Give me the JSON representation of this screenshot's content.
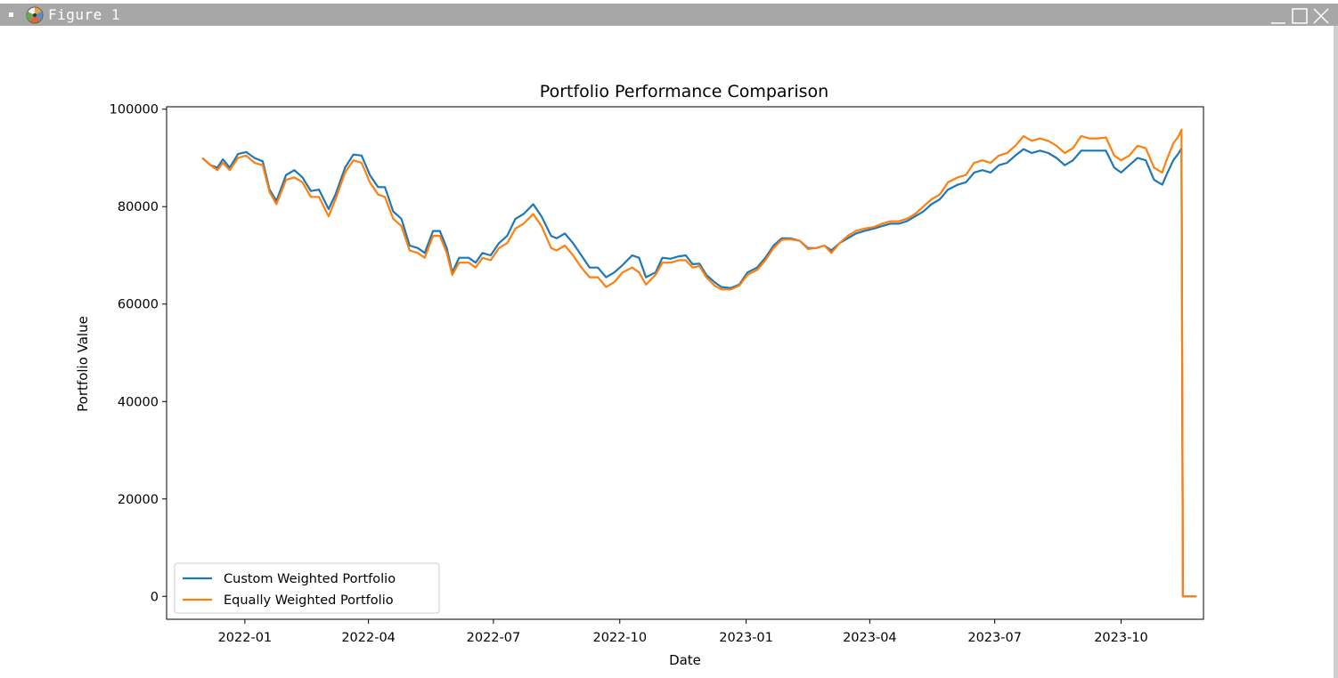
{
  "window": {
    "title": "Figure 1",
    "icons": [
      "matplotlib-logo-icon",
      "minimize-icon",
      "maximize-icon",
      "close-icon"
    ]
  },
  "chart_data": {
    "type": "line",
    "title": "Portfolio Performance Comparison",
    "xlabel": "Date",
    "ylabel": "Portfolio Value",
    "xlim": [
      "2021-11-05",
      "2023-11-30"
    ],
    "ylim": [
      -4700,
      100500
    ],
    "x_ticks": [
      "2022-01",
      "2022-04",
      "2022-07",
      "2022-10",
      "2023-01",
      "2023-04",
      "2023-07",
      "2023-10"
    ],
    "y_ticks": [
      0,
      20000,
      40000,
      60000,
      80000,
      100000
    ],
    "grid": false,
    "legend": {
      "position": "lower-left"
    },
    "series": [
      {
        "name": "Custom Weighted Portfolio",
        "color": "#1f77b4",
        "points": [
          [
            "2021-12-01",
            90000
          ],
          [
            "2021-12-07",
            88500
          ],
          [
            "2021-12-12",
            88000
          ],
          [
            "2021-12-16",
            89700
          ],
          [
            "2021-12-21",
            88000
          ],
          [
            "2021-12-27",
            90800
          ],
          [
            "2022-01-02",
            91200
          ],
          [
            "2022-01-08",
            90000
          ],
          [
            "2022-01-14",
            89300
          ],
          [
            "2022-01-19",
            83500
          ],
          [
            "2022-01-24",
            81200
          ],
          [
            "2022-01-31",
            86500
          ],
          [
            "2022-02-06",
            87500
          ],
          [
            "2022-02-12",
            86000
          ],
          [
            "2022-02-18",
            83200
          ],
          [
            "2022-02-24",
            83500
          ],
          [
            "2022-03-03",
            79500
          ],
          [
            "2022-03-08",
            82500
          ],
          [
            "2022-03-15",
            88000
          ],
          [
            "2022-03-21",
            90700
          ],
          [
            "2022-03-27",
            90500
          ],
          [
            "2022-04-02",
            86500
          ],
          [
            "2022-04-08",
            84000
          ],
          [
            "2022-04-13",
            84000
          ],
          [
            "2022-04-19",
            79000
          ],
          [
            "2022-04-25",
            77500
          ],
          [
            "2022-05-01",
            72000
          ],
          [
            "2022-05-07",
            71500
          ],
          [
            "2022-05-12",
            70500
          ],
          [
            "2022-05-18",
            75000
          ],
          [
            "2022-05-23",
            75000
          ],
          [
            "2022-05-28",
            71500
          ],
          [
            "2022-06-01",
            66500
          ],
          [
            "2022-06-06",
            69500
          ],
          [
            "2022-06-13",
            69500
          ],
          [
            "2022-06-18",
            68500
          ],
          [
            "2022-06-23",
            70500
          ],
          [
            "2022-06-29",
            70000
          ],
          [
            "2022-07-05",
            72500
          ],
          [
            "2022-07-11",
            74000
          ],
          [
            "2022-07-17",
            77500
          ],
          [
            "2022-07-23",
            78500
          ],
          [
            "2022-07-30",
            80500
          ],
          [
            "2022-08-05",
            78000
          ],
          [
            "2022-08-12",
            74000
          ],
          [
            "2022-08-16",
            73500
          ],
          [
            "2022-08-22",
            74500
          ],
          [
            "2022-08-28",
            72500
          ],
          [
            "2022-09-03",
            70000
          ],
          [
            "2022-09-09",
            67500
          ],
          [
            "2022-09-15",
            67500
          ],
          [
            "2022-09-21",
            65500
          ],
          [
            "2022-09-27",
            66500
          ],
          [
            "2022-10-03",
            68000
          ],
          [
            "2022-10-10",
            70000
          ],
          [
            "2022-10-15",
            69500
          ],
          [
            "2022-10-20",
            65500
          ],
          [
            "2022-10-27",
            66500
          ],
          [
            "2022-11-01",
            69500
          ],
          [
            "2022-11-07",
            69300
          ],
          [
            "2022-11-13",
            69800
          ],
          [
            "2022-11-18",
            70000
          ],
          [
            "2022-11-23",
            68200
          ],
          [
            "2022-11-28",
            68300
          ],
          [
            "2022-12-03",
            66000
          ],
          [
            "2022-12-09",
            64500
          ],
          [
            "2022-12-14",
            63500
          ],
          [
            "2022-12-21",
            63300
          ],
          [
            "2022-12-27",
            64000
          ],
          [
            "2023-01-02",
            66500
          ],
          [
            "2023-01-09",
            67500
          ],
          [
            "2023-01-15",
            69500
          ],
          [
            "2023-01-21",
            72000
          ],
          [
            "2023-01-27",
            73500
          ],
          [
            "2023-02-02",
            73500
          ],
          [
            "2023-02-09",
            73000
          ],
          [
            "2023-02-15",
            71500
          ],
          [
            "2023-02-21",
            71500
          ],
          [
            "2023-02-27",
            72000
          ],
          [
            "2023-03-04",
            71000
          ],
          [
            "2023-03-10",
            72500
          ],
          [
            "2023-03-16",
            73500
          ],
          [
            "2023-03-22",
            74500
          ],
          [
            "2023-03-28",
            75000
          ],
          [
            "2023-04-04",
            75500
          ],
          [
            "2023-04-10",
            76000
          ],
          [
            "2023-04-16",
            76500
          ],
          [
            "2023-04-22",
            76500
          ],
          [
            "2023-04-28",
            77000
          ],
          [
            "2023-05-04",
            78000
          ],
          [
            "2023-05-10",
            79000
          ],
          [
            "2023-05-16",
            80500
          ],
          [
            "2023-05-22",
            81500
          ],
          [
            "2023-05-28",
            83500
          ],
          [
            "2023-06-04",
            84500
          ],
          [
            "2023-06-10",
            85000
          ],
          [
            "2023-06-16",
            87000
          ],
          [
            "2023-06-22",
            87500
          ],
          [
            "2023-06-28",
            87000
          ],
          [
            "2023-07-04",
            88500
          ],
          [
            "2023-07-10",
            89000
          ],
          [
            "2023-07-16",
            90500
          ],
          [
            "2023-07-22",
            91800
          ],
          [
            "2023-07-28",
            91000
          ],
          [
            "2023-08-03",
            91500
          ],
          [
            "2023-08-09",
            91000
          ],
          [
            "2023-08-15",
            90000
          ],
          [
            "2023-08-21",
            88500
          ],
          [
            "2023-08-27",
            89500
          ],
          [
            "2023-09-02",
            91500
          ],
          [
            "2023-09-08",
            91500
          ],
          [
            "2023-09-14",
            91500
          ],
          [
            "2023-09-20",
            91500
          ],
          [
            "2023-09-26",
            88000
          ],
          [
            "2023-10-01",
            87000
          ],
          [
            "2023-10-07",
            88500
          ],
          [
            "2023-10-13",
            90000
          ],
          [
            "2023-10-19",
            89500
          ],
          [
            "2023-10-25",
            85500
          ],
          [
            "2023-10-31",
            84500
          ],
          [
            "2023-11-03",
            86500
          ],
          [
            "2023-11-08",
            89500
          ],
          [
            "2023-11-12",
            91000
          ],
          [
            "2023-11-14",
            92000
          ],
          [
            "2023-11-15",
            0
          ],
          [
            "2023-11-25",
            0
          ]
        ]
      },
      {
        "name": "Equally Weighted Portfolio",
        "color": "#ff7f0e",
        "points": [
          [
            "2021-12-01",
            90000
          ],
          [
            "2021-12-07",
            88500
          ],
          [
            "2021-12-12",
            87500
          ],
          [
            "2021-12-16",
            89000
          ],
          [
            "2021-12-21",
            87500
          ],
          [
            "2021-12-27",
            90000
          ],
          [
            "2022-01-02",
            90500
          ],
          [
            "2022-01-08",
            89000
          ],
          [
            "2022-01-14",
            88500
          ],
          [
            "2022-01-19",
            83000
          ],
          [
            "2022-01-24",
            80500
          ],
          [
            "2022-01-31",
            85500
          ],
          [
            "2022-02-06",
            86000
          ],
          [
            "2022-02-12",
            85000
          ],
          [
            "2022-02-18",
            82000
          ],
          [
            "2022-02-24",
            82000
          ],
          [
            "2022-03-03",
            78000
          ],
          [
            "2022-03-08",
            81500
          ],
          [
            "2022-03-15",
            87000
          ],
          [
            "2022-03-21",
            89500
          ],
          [
            "2022-03-27",
            89000
          ],
          [
            "2022-04-02",
            85000
          ],
          [
            "2022-04-08",
            82500
          ],
          [
            "2022-04-13",
            82000
          ],
          [
            "2022-04-19",
            77500
          ],
          [
            "2022-04-25",
            76000
          ],
          [
            "2022-05-01",
            71000
          ],
          [
            "2022-05-07",
            70500
          ],
          [
            "2022-05-12",
            69500
          ],
          [
            "2022-05-18",
            74000
          ],
          [
            "2022-05-23",
            74000
          ],
          [
            "2022-05-28",
            70500
          ],
          [
            "2022-06-01",
            66000
          ],
          [
            "2022-06-06",
            68500
          ],
          [
            "2022-06-13",
            68500
          ],
          [
            "2022-06-18",
            67500
          ],
          [
            "2022-06-23",
            69500
          ],
          [
            "2022-06-29",
            69000
          ],
          [
            "2022-07-05",
            71500
          ],
          [
            "2022-07-11",
            72500
          ],
          [
            "2022-07-17",
            75500
          ],
          [
            "2022-07-23",
            76500
          ],
          [
            "2022-07-30",
            78500
          ],
          [
            "2022-08-05",
            76000
          ],
          [
            "2022-08-12",
            71500
          ],
          [
            "2022-08-16",
            71000
          ],
          [
            "2022-08-22",
            72000
          ],
          [
            "2022-08-28",
            70000
          ],
          [
            "2022-09-03",
            67500
          ],
          [
            "2022-09-09",
            65500
          ],
          [
            "2022-09-15",
            65500
          ],
          [
            "2022-09-21",
            63500
          ],
          [
            "2022-09-27",
            64500
          ],
          [
            "2022-10-03",
            66500
          ],
          [
            "2022-10-10",
            67500
          ],
          [
            "2022-10-15",
            66500
          ],
          [
            "2022-10-20",
            64000
          ],
          [
            "2022-10-27",
            66000
          ],
          [
            "2022-11-01",
            68500
          ],
          [
            "2022-11-07",
            68500
          ],
          [
            "2022-11-13",
            69000
          ],
          [
            "2022-11-18",
            69000
          ],
          [
            "2022-11-23",
            67500
          ],
          [
            "2022-11-28",
            67800
          ],
          [
            "2022-12-03",
            65500
          ],
          [
            "2022-12-09",
            63800
          ],
          [
            "2022-12-14",
            63000
          ],
          [
            "2022-12-21",
            63000
          ],
          [
            "2022-12-27",
            63800
          ],
          [
            "2023-01-02",
            66000
          ],
          [
            "2023-01-09",
            67000
          ],
          [
            "2023-01-15",
            69000
          ],
          [
            "2023-01-21",
            71500
          ],
          [
            "2023-01-27",
            73200
          ],
          [
            "2023-02-02",
            73300
          ],
          [
            "2023-02-09",
            73000
          ],
          [
            "2023-02-15",
            71300
          ],
          [
            "2023-02-21",
            71500
          ],
          [
            "2023-02-27",
            72000
          ],
          [
            "2023-03-04",
            70500
          ],
          [
            "2023-03-10",
            72500
          ],
          [
            "2023-03-16",
            74000
          ],
          [
            "2023-03-22",
            75000
          ],
          [
            "2023-03-28",
            75500
          ],
          [
            "2023-04-04",
            75800
          ],
          [
            "2023-04-10",
            76500
          ],
          [
            "2023-04-16",
            77000
          ],
          [
            "2023-04-22",
            77000
          ],
          [
            "2023-04-28",
            77500
          ],
          [
            "2023-05-04",
            78500
          ],
          [
            "2023-05-10",
            80000
          ],
          [
            "2023-05-16",
            81500
          ],
          [
            "2023-05-22",
            82500
          ],
          [
            "2023-05-28",
            85000
          ],
          [
            "2023-06-04",
            86000
          ],
          [
            "2023-06-10",
            86500
          ],
          [
            "2023-06-16",
            89000
          ],
          [
            "2023-06-22",
            89500
          ],
          [
            "2023-06-28",
            89000
          ],
          [
            "2023-07-04",
            90500
          ],
          [
            "2023-07-10",
            91000
          ],
          [
            "2023-07-16",
            92500
          ],
          [
            "2023-07-22",
            94500
          ],
          [
            "2023-07-28",
            93500
          ],
          [
            "2023-08-03",
            94000
          ],
          [
            "2023-08-09",
            93500
          ],
          [
            "2023-08-15",
            92500
          ],
          [
            "2023-08-21",
            91000
          ],
          [
            "2023-08-27",
            92000
          ],
          [
            "2023-09-02",
            94500
          ],
          [
            "2023-09-08",
            94000
          ],
          [
            "2023-09-14",
            94000
          ],
          [
            "2023-09-20",
            94200
          ],
          [
            "2023-09-26",
            90500
          ],
          [
            "2023-10-01",
            89500
          ],
          [
            "2023-10-07",
            90500
          ],
          [
            "2023-10-13",
            92500
          ],
          [
            "2023-10-19",
            92000
          ],
          [
            "2023-10-25",
            88000
          ],
          [
            "2023-10-31",
            87000
          ],
          [
            "2023-11-03",
            89500
          ],
          [
            "2023-11-08",
            93000
          ],
          [
            "2023-11-12",
            94500
          ],
          [
            "2023-11-14",
            95800
          ],
          [
            "2023-11-15",
            0
          ],
          [
            "2023-11-25",
            0
          ]
        ]
      }
    ]
  }
}
